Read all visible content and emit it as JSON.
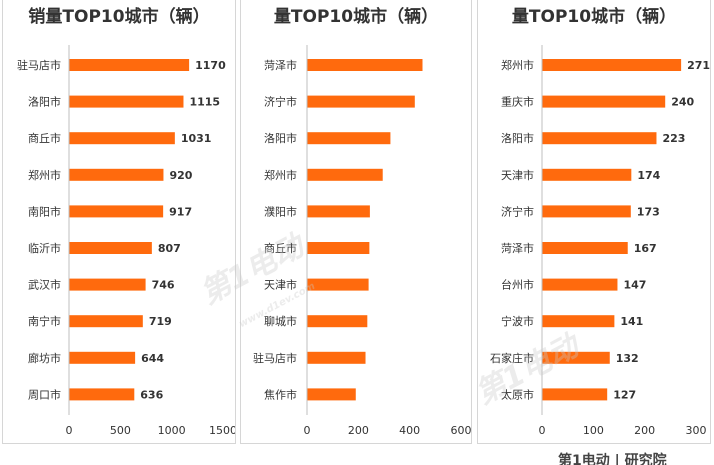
{
  "chart_data": [
    {
      "type": "bar",
      "orientation": "horizontal",
      "title_line1": "",
      "title_line2": "销量TOP10城市（辆）",
      "categories": [
        "驻马店市",
        "洛阳市",
        "商丘市",
        "郑州市",
        "南阳市",
        "临沂市",
        "武汉市",
        "南宁市",
        "廊坊市",
        "周口市"
      ],
      "values": [
        1170,
        1115,
        1031,
        920,
        917,
        807,
        746,
        719,
        644,
        636
      ],
      "show_value_labels": true,
      "xlim": [
        0,
        1500
      ],
      "xticks": [
        "0",
        "500",
        "1000",
        "1500"
      ],
      "bar_color": "#ff6a0d",
      "grid": false
    },
    {
      "type": "bar",
      "orientation": "horizontal",
      "title_line1": "",
      "title_line2": "量TOP10城市（辆）",
      "categories": [
        "菏泽市",
        "济宁市",
        "洛阳市",
        "郑州市",
        "濮阳市",
        "商丘市",
        "天津市",
        "聊城市",
        "驻马店市",
        "焦作市"
      ],
      "values": [
        450,
        420,
        325,
        295,
        245,
        243,
        240,
        235,
        228,
        190
      ],
      "show_value_labels": false,
      "xlim": [
        0,
        600
      ],
      "xticks": [
        "0",
        "200",
        "400",
        "600"
      ],
      "bar_color": "#ff6a0d",
      "grid": false
    },
    {
      "type": "bar",
      "orientation": "horizontal",
      "title_line1": "",
      "title_line2": "量TOP10城市（辆）",
      "categories": [
        "郑州市",
        "重庆市",
        "洛阳市",
        "天津市",
        "济宁市",
        "菏泽市",
        "台州市",
        "宁波市",
        "石家庄市",
        "太原市"
      ],
      "values": [
        271,
        240,
        223,
        174,
        173,
        167,
        147,
        141,
        132,
        127
      ],
      "show_value_labels": true,
      "xlim": [
        0,
        300
      ],
      "xticks": [
        "0",
        "100",
        "200",
        "300"
      ],
      "bar_color": "#ff6a0d",
      "grid": false
    }
  ],
  "watermark": {
    "text": "第1电动",
    "domain": "www.d1ev.com"
  },
  "footer": {
    "text": "第1电动 | 研究院"
  }
}
